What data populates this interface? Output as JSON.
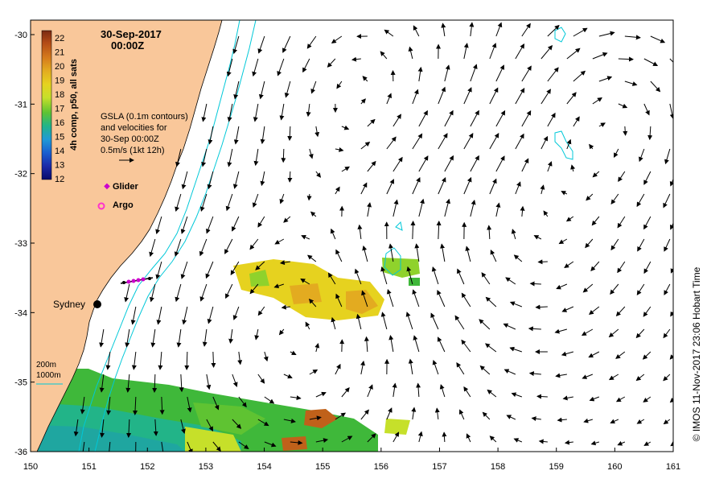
{
  "header": {
    "date": "30-Sep-2017",
    "time": "00:00Z"
  },
  "colorbar": {
    "label": "4h comp, p50, all sats",
    "ticks": [
      "22",
      "21",
      "20",
      "19",
      "18",
      "17",
      "16",
      "15",
      "14",
      "13",
      "12"
    ],
    "colors": [
      "#7a2a12",
      "#b24a16",
      "#d57a1c",
      "#e3ab20",
      "#e6d21f",
      "#c6e02a",
      "#8fd22c",
      "#3fb83a",
      "#22b488",
      "#1f9ad6",
      "#1a5fd0",
      "#1b2aa8",
      "#0a0a6a"
    ]
  },
  "legend": {
    "line1": "GSLA (0.1m contours)",
    "line2": "and velocities for",
    "line3": "30-Sep 00:00Z",
    "line4": "0.5m/s (1kt 12h)",
    "glider": "Glider",
    "argo": "Argo",
    "bathy_200": "200m",
    "bathy_1000": "1000m"
  },
  "places": {
    "sydney": "Sydney"
  },
  "axes": {
    "x_ticks": [
      "150",
      "151",
      "152",
      "153",
      "154",
      "155",
      "156",
      "157",
      "158",
      "159",
      "160",
      "161"
    ],
    "y_ticks": [
      "-30",
      "-31",
      "-32",
      "-33",
      "-34",
      "-35",
      "-36"
    ]
  },
  "credit": "© IMOS 11-Nov-2017 23:06 Hobart Time",
  "colors": {
    "land": "#f9c79a",
    "isobath": "#00c8d8",
    "glider": "#cc00cc",
    "argo": "#ff33cc"
  },
  "chart_data": {
    "type": "map",
    "region": {
      "lon": [
        150,
        161
      ],
      "lat": [
        -36,
        -30
      ]
    },
    "features": [
      {
        "kind": "place",
        "name": "Sydney",
        "lon": 151.2,
        "lat": -33.87
      },
      {
        "kind": "glider_track",
        "lon": [
          151.5,
          152.1
        ],
        "lat": [
          -33.55,
          -33.5
        ]
      }
    ]
  }
}
